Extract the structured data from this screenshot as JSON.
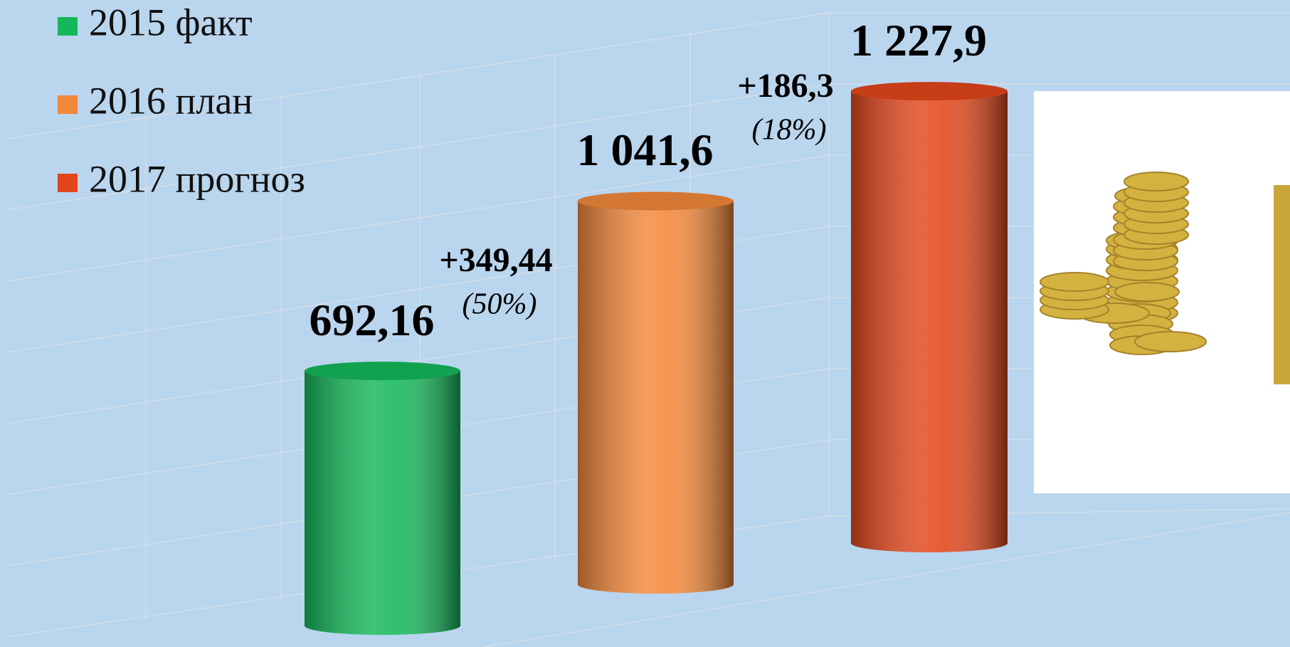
{
  "chart_data": {
    "type": "bar",
    "series": [
      {
        "name": "2015 факт",
        "color": "#14b85a",
        "values": [
          692.16
        ],
        "value_labels": [
          "692,16"
        ]
      },
      {
        "name": "2016 план",
        "color": "#f2883a",
        "values": [
          1041.6
        ],
        "value_labels": [
          "1 041,6"
        ]
      },
      {
        "name": "2017 прогноз",
        "color": "#e2461b",
        "values": [
          1227.9
        ],
        "value_labels": [
          "1 227,9"
        ]
      }
    ],
    "annotations": [
      {
        "text": "+349,44",
        "note": "(50%)"
      },
      {
        "text": "+186,3",
        "note": "(18%)"
      }
    ]
  }
}
